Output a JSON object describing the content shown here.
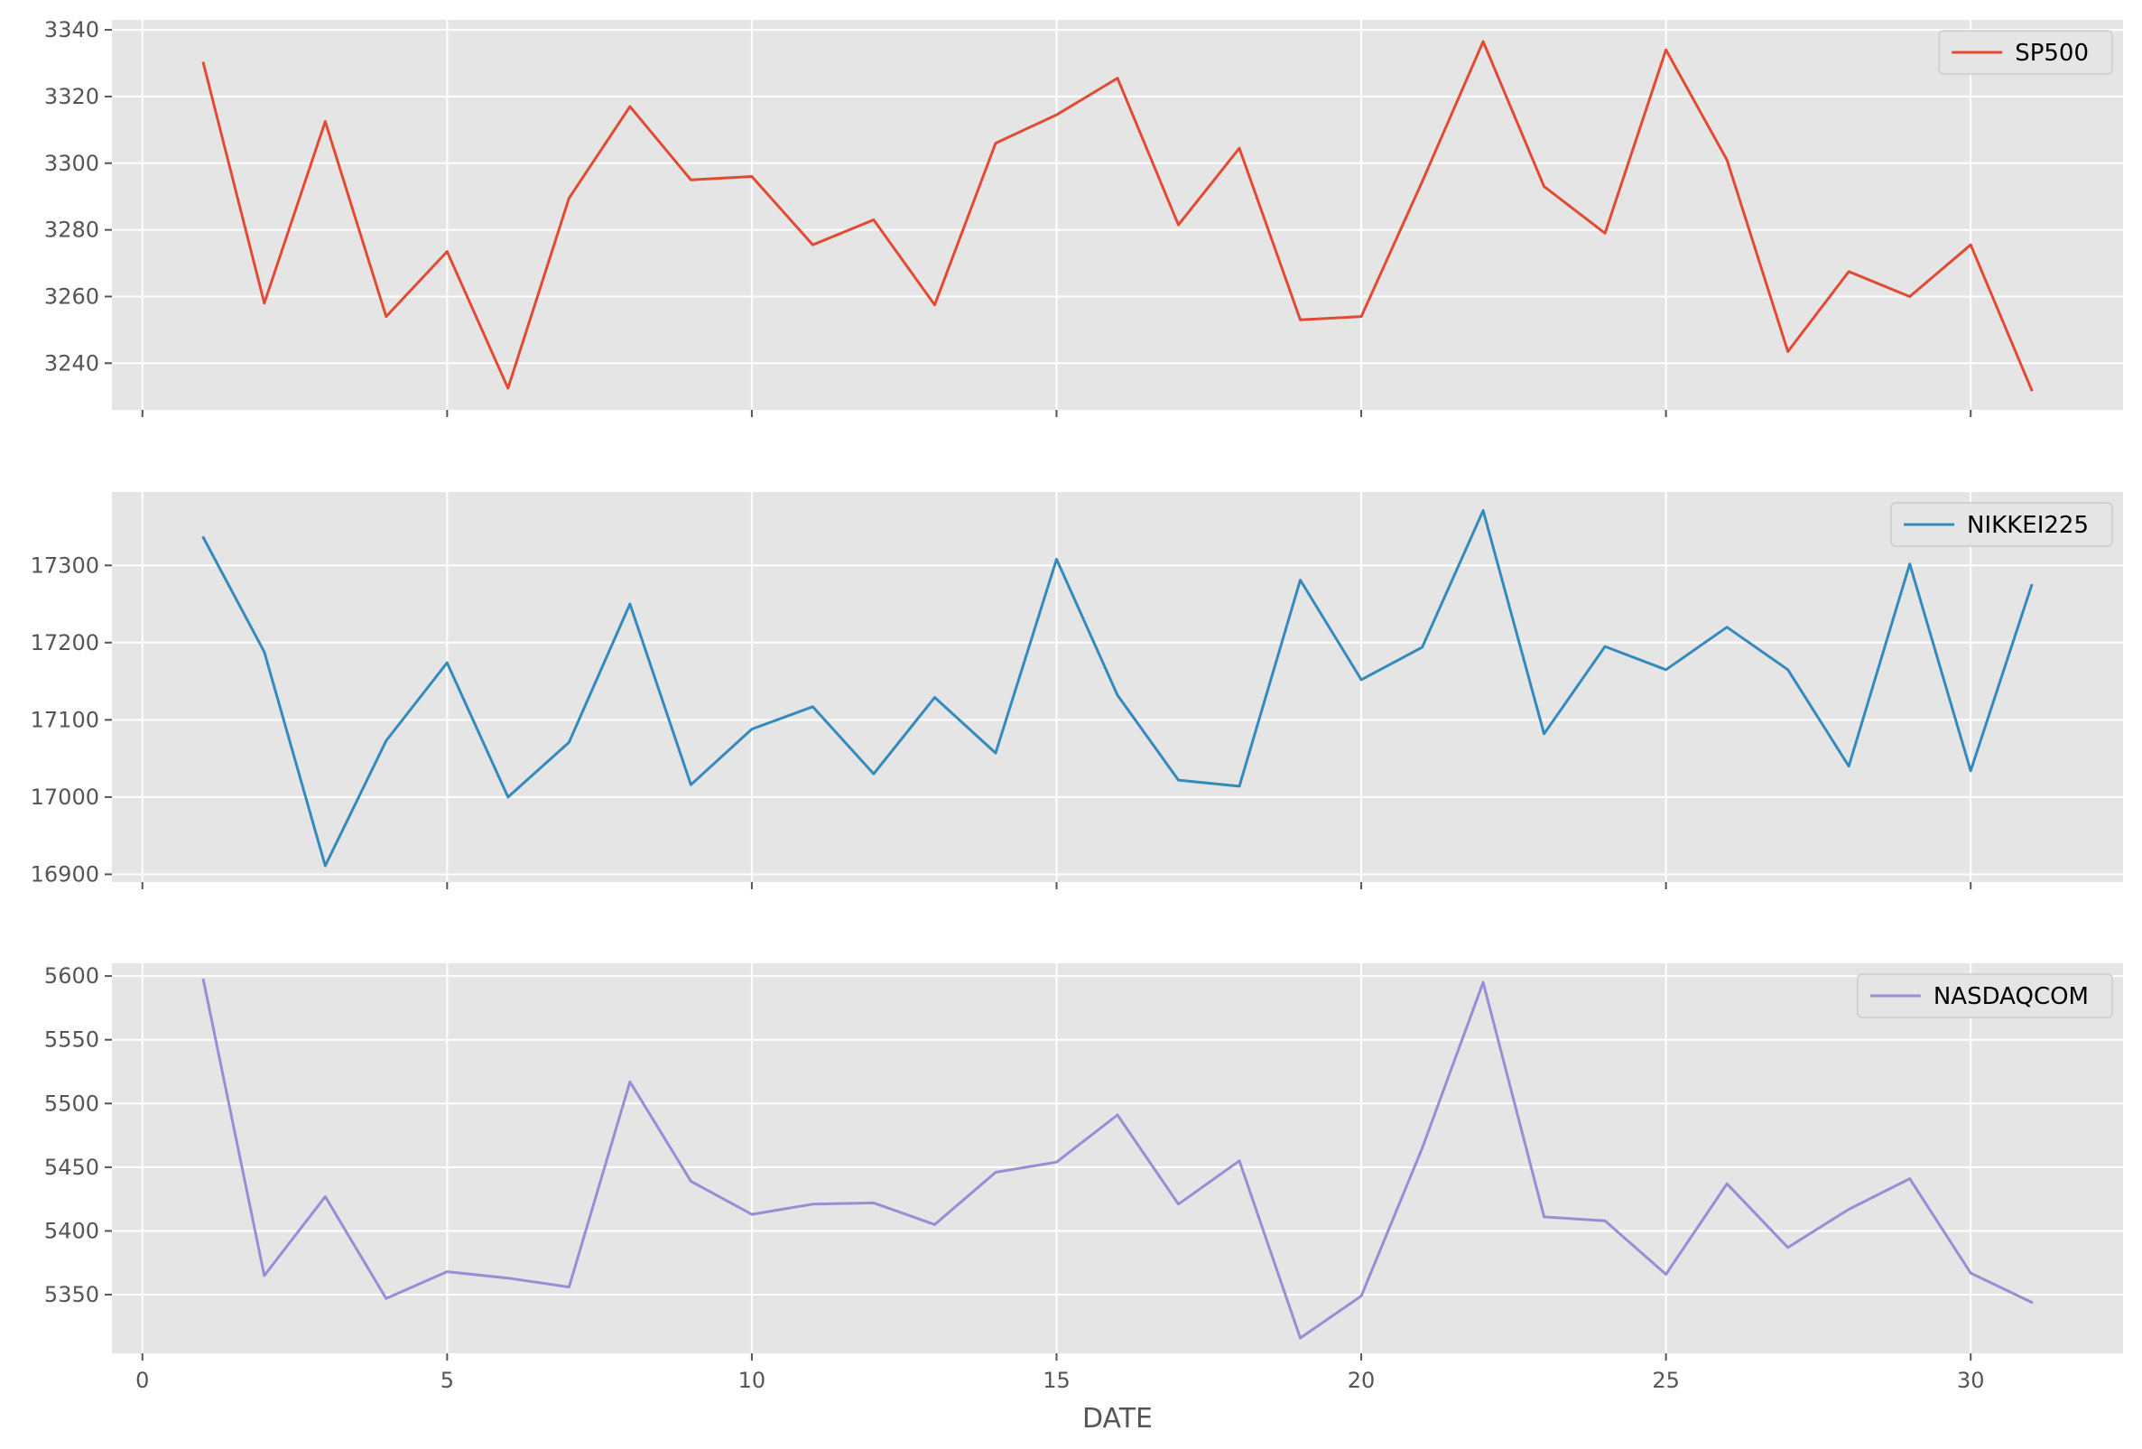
{
  "chart_data": [
    {
      "type": "line",
      "xlabel": "",
      "ylabel": "",
      "xlim": [
        -0.5,
        32.5
      ],
      "ylim": [
        3226,
        3343
      ],
      "xticks": [
        0,
        5,
        10,
        15,
        20,
        25,
        30
      ],
      "yticks": [
        3240,
        3260,
        3280,
        3300,
        3320,
        3340
      ],
      "show_xtick_labels": false,
      "grid": true,
      "legend_position": "top-right",
      "x": [
        1,
        2,
        3,
        4,
        5,
        6,
        7,
        8,
        9,
        10,
        11,
        12,
        13,
        14,
        15,
        16,
        17,
        18,
        19,
        20,
        21,
        22,
        23,
        24,
        25,
        26,
        27,
        28,
        29,
        30,
        31
      ],
      "series": [
        {
          "name": "SP500",
          "color": "#e24a33",
          "values": [
            3330,
            3258,
            3312.5,
            3254,
            3273.5,
            3232.5,
            3289.5,
            3317,
            3295,
            3296,
            3275.5,
            3283,
            3257.5,
            3306,
            3314.5,
            3325.5,
            3281.5,
            3304.5,
            3253,
            3254,
            3294.5,
            3336.5,
            3293,
            3279,
            3334,
            3301,
            3243.5,
            3267.5,
            3260,
            3275.5,
            3232
          ]
        }
      ]
    },
    {
      "type": "line",
      "xlabel": "",
      "ylabel": "",
      "xlim": [
        -0.5,
        32.5
      ],
      "ylim": [
        16890,
        17395
      ],
      "xticks": [
        0,
        5,
        10,
        15,
        20,
        25,
        30
      ],
      "yticks": [
        16900,
        17000,
        17100,
        17200,
        17300
      ],
      "show_xtick_labels": false,
      "grid": true,
      "legend_position": "top-right",
      "x": [
        1,
        2,
        3,
        4,
        5,
        6,
        7,
        8,
        9,
        10,
        11,
        12,
        13,
        14,
        15,
        16,
        17,
        18,
        19,
        20,
        21,
        22,
        23,
        24,
        25,
        26,
        27,
        28,
        29,
        30,
        31
      ],
      "series": [
        {
          "name": "NIKKEI225",
          "color": "#348abd",
          "values": [
            17336,
            17188,
            16911,
            17073,
            17174,
            17000,
            17071,
            17250,
            17016,
            17088,
            17117,
            17030,
            17129,
            17057,
            17308,
            17132,
            17022,
            17014,
            17281,
            17152,
            17194,
            17371,
            17082,
            17195,
            17165,
            17220,
            17165,
            17040,
            17302,
            17034,
            17274
          ]
        }
      ]
    },
    {
      "type": "line",
      "xlabel": "DATE",
      "ylabel": "",
      "xlim": [
        -0.5,
        32.5
      ],
      "ylim": [
        5304,
        5610
      ],
      "xticks": [
        0,
        5,
        10,
        15,
        20,
        25,
        30
      ],
      "yticks": [
        5350,
        5400,
        5450,
        5500,
        5550,
        5600
      ],
      "show_xtick_labels": true,
      "grid": true,
      "legend_position": "top-right",
      "x": [
        1,
        2,
        3,
        4,
        5,
        6,
        7,
        8,
        9,
        10,
        11,
        12,
        13,
        14,
        15,
        16,
        17,
        18,
        19,
        20,
        21,
        22,
        23,
        24,
        25,
        26,
        27,
        28,
        29,
        30,
        31
      ],
      "series": [
        {
          "name": "NASDAQCOM",
          "color": "#988ed5",
          "values": [
            5597,
            5365,
            5427,
            5347,
            5368,
            5363,
            5356,
            5517,
            5439,
            5413,
            5421,
            5422,
            5405,
            5446,
            5454,
            5491,
            5421,
            5455,
            5316,
            5349,
            5465,
            5595,
            5411,
            5408,
            5366,
            5437,
            5387,
            5417,
            5441,
            5367,
            5344
          ]
        }
      ]
    }
  ]
}
